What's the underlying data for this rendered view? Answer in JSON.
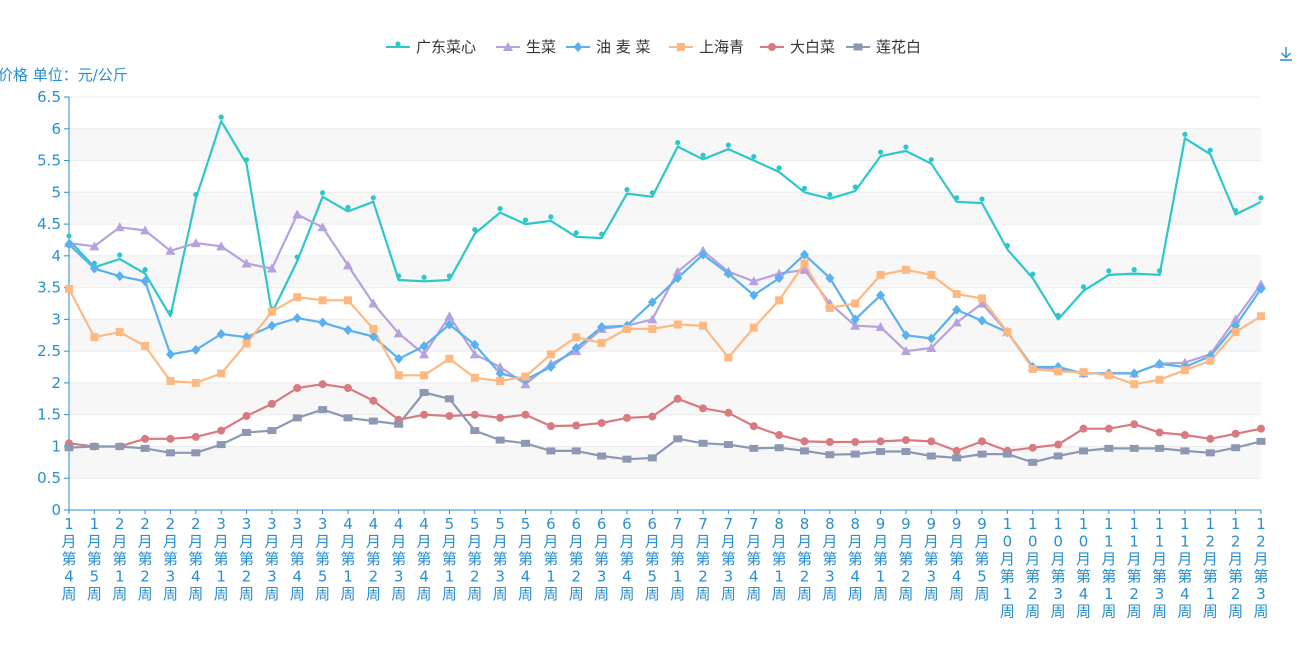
{
  "chart_data": {
    "type": "line",
    "ylabel": "价格 单位：元/公斤",
    "ylim": [
      0,
      6.5
    ],
    "yticks": [
      0,
      0.5,
      1,
      1.5,
      2,
      2.5,
      3,
      3.5,
      4,
      4.5,
      5,
      5.5,
      6,
      6.5
    ],
    "categories": [
      "1月第4周",
      "1月第5周",
      "2月第1周",
      "2月第2周",
      "2月第3周",
      "2月第4周",
      "3月第1周",
      "3月第2周",
      "3月第3周",
      "3月第4周",
      "3月第5周",
      "4月第1周",
      "4月第2周",
      "4月第3周",
      "4月第4周",
      "5月第1周",
      "5月第2周",
      "5月第3周",
      "5月第4周",
      "6月第1周",
      "6月第2周",
      "6月第3周",
      "6月第4周",
      "6月第5周",
      "7月第1周",
      "7月第2周",
      "7月第3周",
      "7月第4周",
      "8月第1周",
      "8月第2周",
      "8月第3周",
      "8月第4周",
      "9月第1周",
      "9月第2周",
      "9月第3周",
      "9月第4周",
      "9月第5周",
      "10月第1周",
      "10月第2周",
      "10月第3周",
      "10月第4周",
      "11月第1周",
      "11月第2周",
      "11月第3周",
      "11月第4周",
      "12月第1周",
      "12月第2周",
      "12月第3周"
    ],
    "legend_position": "top",
    "grid": true,
    "series": [
      {
        "name": "广东菜心",
        "color": "#2ec7c9",
        "marker": "pin",
        "values": [
          4.25,
          3.82,
          3.95,
          3.72,
          3.05,
          4.9,
          6.12,
          5.45,
          3.1,
          3.92,
          4.93,
          4.7,
          4.85,
          3.62,
          3.6,
          3.62,
          4.35,
          4.68,
          4.5,
          4.55,
          4.3,
          4.28,
          4.98,
          4.93,
          5.72,
          5.52,
          5.68,
          5.5,
          5.32,
          5.0,
          4.9,
          5.02,
          5.57,
          5.65,
          5.45,
          4.85,
          4.83,
          4.1,
          3.65,
          3.0,
          3.45,
          3.7,
          3.72,
          3.7,
          5.85,
          5.6,
          4.65,
          4.85
        ]
      },
      {
        "name": "生菜",
        "color": "#b6a2de",
        "marker": "triangle",
        "values": [
          4.2,
          4.15,
          4.45,
          4.4,
          4.08,
          4.2,
          4.15,
          3.88,
          3.8,
          4.65,
          4.45,
          3.85,
          3.25,
          2.78,
          2.45,
          3.05,
          2.45,
          2.25,
          1.98,
          2.3,
          2.5,
          2.85,
          2.9,
          3.0,
          3.75,
          4.08,
          3.75,
          3.6,
          3.72,
          3.78,
          3.25,
          2.9,
          2.88,
          2.5,
          2.55,
          2.95,
          3.25,
          2.8,
          2.25,
          2.22,
          2.15,
          2.15,
          2.15,
          2.3,
          2.32,
          2.45,
          3.0,
          3.55
        ]
      },
      {
        "name": "油 麦 菜",
        "color": "#5ab1ef",
        "marker": "diamond",
        "values": [
          4.18,
          3.8,
          3.68,
          3.6,
          2.45,
          2.52,
          2.77,
          2.72,
          2.9,
          3.02,
          2.95,
          2.83,
          2.73,
          2.38,
          2.58,
          2.92,
          2.6,
          2.15,
          2.05,
          2.25,
          2.55,
          2.88,
          2.9,
          3.27,
          3.65,
          4.02,
          3.72,
          3.38,
          3.65,
          4.02,
          3.65,
          3.0,
          3.38,
          2.75,
          2.7,
          3.15,
          2.98,
          2.8,
          2.25,
          2.25,
          2.15,
          2.15,
          2.15,
          2.3,
          2.25,
          2.42,
          2.9,
          3.48
        ]
      },
      {
        "name": "上海青",
        "color": "#ffb980",
        "marker": "square",
        "values": [
          3.48,
          2.72,
          2.8,
          2.58,
          2.03,
          2.0,
          2.15,
          2.62,
          3.12,
          3.35,
          3.3,
          3.3,
          2.85,
          2.12,
          2.12,
          2.38,
          2.08,
          2.03,
          2.1,
          2.45,
          2.72,
          2.63,
          2.85,
          2.85,
          2.92,
          2.9,
          2.4,
          2.87,
          3.3,
          3.88,
          3.18,
          3.25,
          3.7,
          3.78,
          3.7,
          3.4,
          3.33,
          2.8,
          2.22,
          2.18,
          2.17,
          2.12,
          1.98,
          2.05,
          2.2,
          2.35,
          2.8,
          3.05
        ]
      },
      {
        "name": "大白菜",
        "color": "#d87a80",
        "marker": "circle",
        "values": [
          1.05,
          1.0,
          1.0,
          1.12,
          1.12,
          1.15,
          1.25,
          1.48,
          1.67,
          1.92,
          1.98,
          1.92,
          1.72,
          1.42,
          1.5,
          1.48,
          1.5,
          1.45,
          1.5,
          1.32,
          1.33,
          1.37,
          1.45,
          1.47,
          1.75,
          1.6,
          1.53,
          1.32,
          1.18,
          1.08,
          1.07,
          1.07,
          1.08,
          1.1,
          1.08,
          0.93,
          1.08,
          0.93,
          0.98,
          1.03,
          1.28,
          1.28,
          1.35,
          1.22,
          1.18,
          1.12,
          1.2,
          1.28
        ]
      },
      {
        "name": "莲花白",
        "color": "#8d98b3",
        "marker": "rect",
        "values": [
          0.98,
          1.0,
          1.0,
          0.97,
          0.9,
          0.9,
          1.03,
          1.22,
          1.25,
          1.45,
          1.58,
          1.45,
          1.4,
          1.35,
          1.85,
          1.75,
          1.25,
          1.1,
          1.05,
          0.93,
          0.93,
          0.85,
          0.8,
          0.82,
          1.12,
          1.05,
          1.03,
          0.97,
          0.98,
          0.93,
          0.87,
          0.88,
          0.92,
          0.92,
          0.85,
          0.82,
          0.88,
          0.88,
          0.75,
          0.85,
          0.93,
          0.97,
          0.97,
          0.97,
          0.93,
          0.9,
          0.98,
          1.08
        ]
      }
    ]
  },
  "toolbar": {
    "download_icon": "download-icon"
  }
}
